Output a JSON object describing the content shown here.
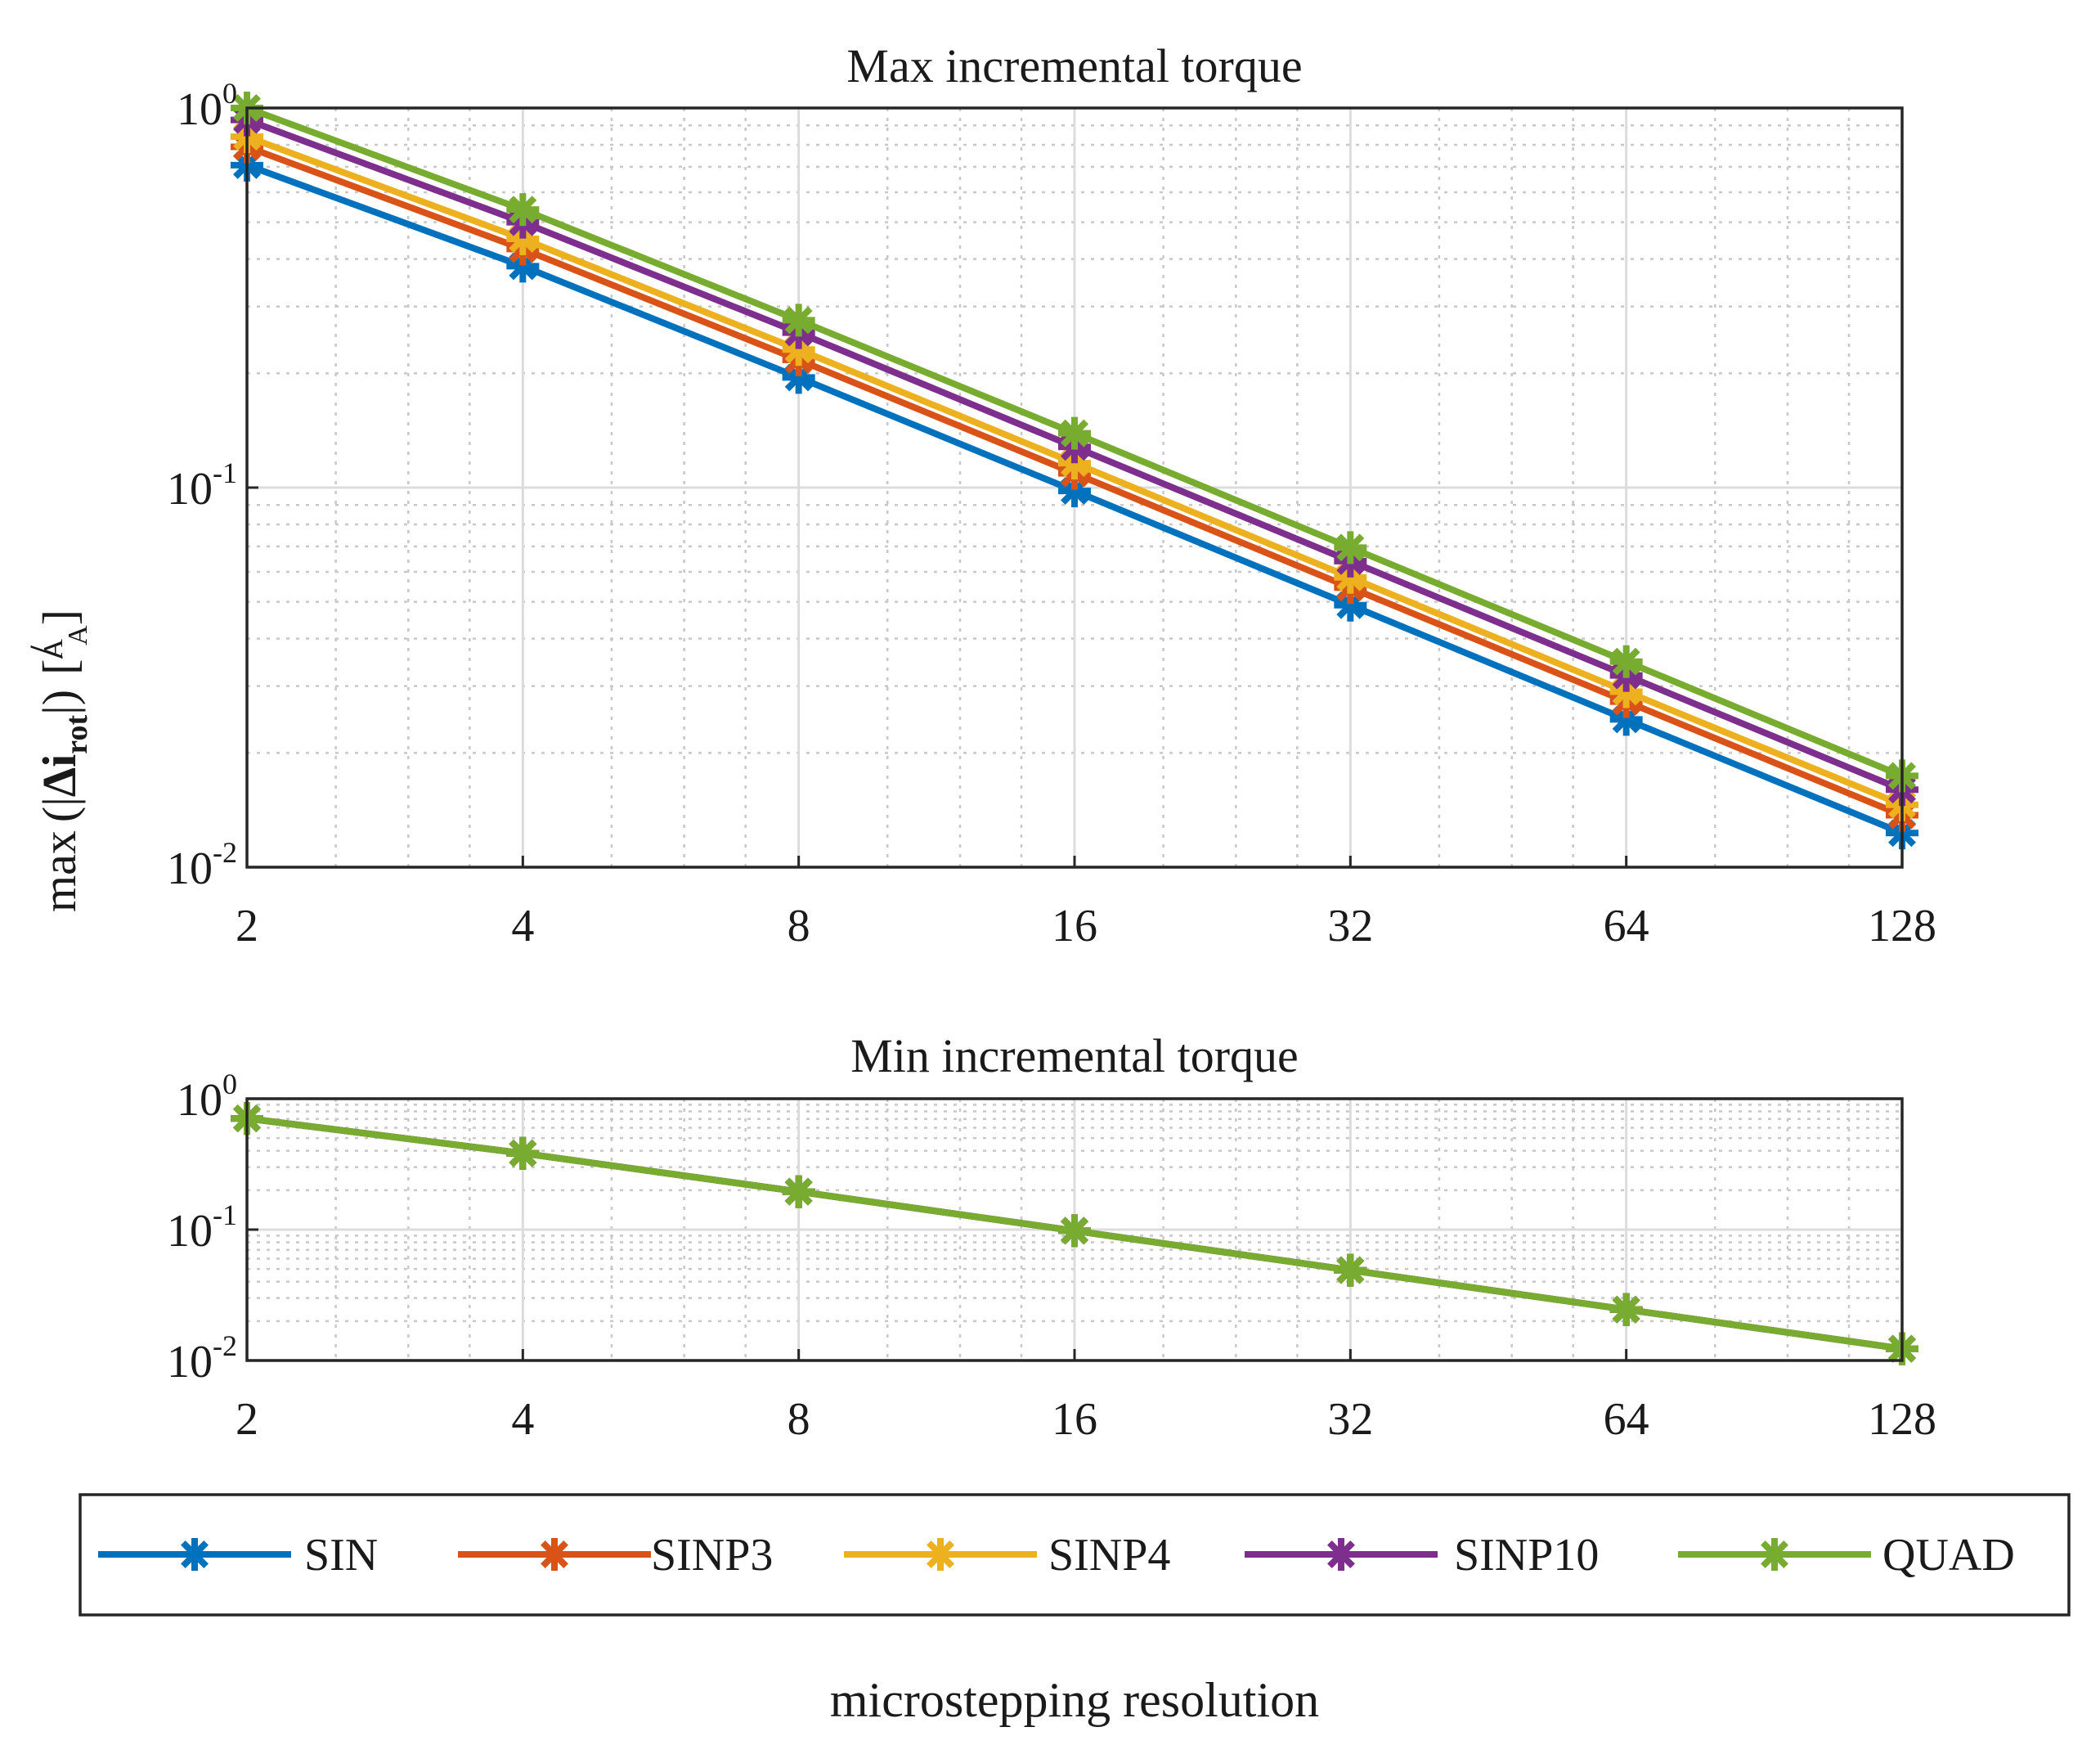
{
  "chart_data": [
    {
      "type": "line",
      "title": "Max incremental torque",
      "xscale": "log2",
      "yscale": "log10",
      "categories": [
        "2",
        "4",
        "8",
        "16",
        "32",
        "64",
        "128"
      ],
      "x": [
        2,
        4,
        8,
        16,
        32,
        64,
        128
      ],
      "xlim": [
        2,
        128
      ],
      "ylim": [
        0.01,
        1
      ],
      "yticks": [
        {
          "base": "10",
          "exp": "-2",
          "value": 0.01
        },
        {
          "base": "10",
          "exp": "-1",
          "value": 0.1
        },
        {
          "base": "10",
          "exp": "0",
          "value": 1
        }
      ],
      "ylabel": {
        "prefix": "max",
        "symbol": "Δi",
        "subscript": "rot",
        "unit_num": "A",
        "unit_den": "A"
      },
      "grid": true,
      "series": [
        {
          "name": "SIN",
          "values": [
            0.707,
            0.383,
            0.195,
            0.098,
            0.049,
            0.0245,
            0.0123
          ]
        },
        {
          "name": "SINP3",
          "values": [
            0.79,
            0.425,
            0.217,
            0.109,
            0.0545,
            0.0273,
            0.0137
          ]
        },
        {
          "name": "SINP4",
          "values": [
            0.84,
            0.452,
            0.231,
            0.116,
            0.058,
            0.029,
            0.0146
          ]
        },
        {
          "name": "SINP10",
          "values": [
            0.93,
            0.5,
            0.256,
            0.128,
            0.064,
            0.032,
            0.016
          ]
        },
        {
          "name": "QUAD",
          "values": [
            1.0,
            0.54,
            0.276,
            0.139,
            0.0695,
            0.0348,
            0.0174
          ]
        }
      ]
    },
    {
      "type": "line",
      "title": "Min incremental torque",
      "xscale": "log2",
      "yscale": "log10",
      "categories": [
        "2",
        "4",
        "8",
        "16",
        "32",
        "64",
        "128"
      ],
      "x": [
        2,
        4,
        8,
        16,
        32,
        64,
        128
      ],
      "xlim": [
        2,
        128
      ],
      "ylim": [
        0.01,
        1
      ],
      "yticks": [
        {
          "base": "10",
          "exp": "-2",
          "value": 0.01
        },
        {
          "base": "10",
          "exp": "-1",
          "value": 0.1
        },
        {
          "base": "10",
          "exp": "0",
          "value": 1
        }
      ],
      "grid": true,
      "series": [
        {
          "name": "SIN",
          "values": [
            0.707,
            0.383,
            0.195,
            0.098,
            0.049,
            0.0245,
            0.0123
          ]
        },
        {
          "name": "SINP3",
          "values": [
            0.707,
            0.383,
            0.195,
            0.098,
            0.049,
            0.0245,
            0.0123
          ]
        },
        {
          "name": "SINP4",
          "values": [
            0.707,
            0.383,
            0.195,
            0.098,
            0.049,
            0.0245,
            0.0123
          ]
        },
        {
          "name": "SINP10",
          "values": [
            0.707,
            0.383,
            0.195,
            0.098,
            0.049,
            0.0245,
            0.0123
          ]
        },
        {
          "name": "QUAD",
          "values": [
            0.707,
            0.383,
            0.195,
            0.098,
            0.049,
            0.0245,
            0.0123
          ]
        }
      ]
    }
  ],
  "legend": {
    "placement": "bottom",
    "items": [
      {
        "name": "SIN",
        "color": "#0072BD"
      },
      {
        "name": "SINP3",
        "color": "#D95319"
      },
      {
        "name": "SINP4",
        "color": "#EDB120"
      },
      {
        "name": "SINP10",
        "color": "#7E2F8E"
      },
      {
        "name": "QUAD",
        "color": "#77AC30"
      }
    ]
  },
  "xlabel": "microstepping resolution"
}
